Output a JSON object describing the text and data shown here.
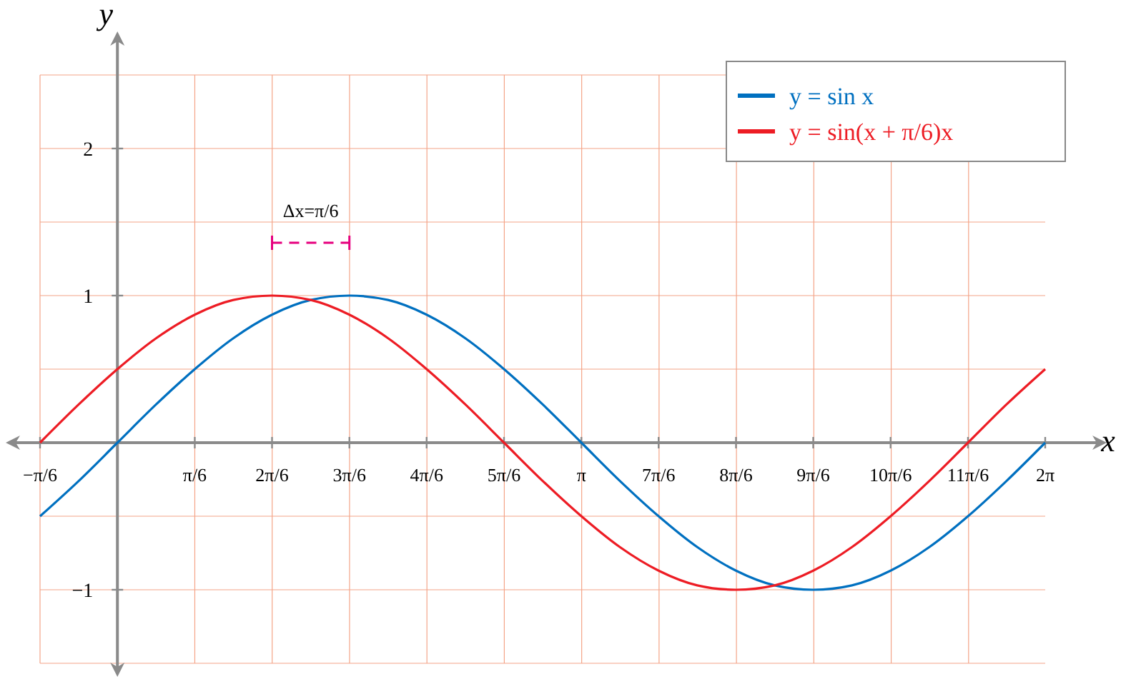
{
  "chart_data": {
    "type": "line",
    "xlabel": "x",
    "ylabel": "y",
    "x": [
      -0.524,
      -0.262,
      0,
      0.262,
      0.524,
      0.785,
      1.047,
      1.309,
      1.571,
      1.833,
      2.094,
      2.356,
      2.618,
      2.88,
      3.142,
      3.403,
      3.665,
      3.927,
      4.189,
      4.451,
      4.712,
      4.974,
      5.236,
      5.498,
      5.76,
      6.021,
      6.283
    ],
    "series": [
      {
        "name": "y = sin x",
        "color": "#0070c0",
        "values": [
          -0.5,
          -0.26,
          0,
          0.26,
          0.5,
          0.71,
          0.87,
          0.97,
          1,
          0.97,
          0.87,
          0.71,
          0.5,
          0.26,
          0,
          -0.26,
          -0.5,
          -0.71,
          -0.87,
          -0.97,
          -1,
          -0.97,
          -0.87,
          -0.71,
          -0.5,
          -0.26,
          0
        ]
      },
      {
        "name": "y = sin(x + π/6)x",
        "color": "#ed1c24",
        "values": [
          0,
          0.26,
          0.5,
          0.71,
          0.87,
          0.97,
          1,
          0.97,
          0.87,
          0.71,
          0.5,
          0.26,
          0,
          -0.26,
          -0.5,
          -0.71,
          -0.87,
          -0.97,
          -1,
          -0.97,
          -0.87,
          -0.71,
          -0.5,
          -0.26,
          0,
          0.26,
          0.5
        ]
      }
    ],
    "xlim": [
      -0.524,
      6.283
    ],
    "ylim": [
      -1.5,
      2.5
    ],
    "xticks": [
      {
        "value": -0.524,
        "label": "−π/6"
      },
      {
        "value": 0.524,
        "label": "π/6"
      },
      {
        "value": 1.047,
        "label": "2π/6"
      },
      {
        "value": 1.571,
        "label": "3π/6"
      },
      {
        "value": 2.094,
        "label": "4π/6"
      },
      {
        "value": 2.618,
        "label": "5π/6"
      },
      {
        "value": 3.142,
        "label": "π"
      },
      {
        "value": 3.665,
        "label": "7π/6"
      },
      {
        "value": 4.189,
        "label": "8π/6"
      },
      {
        "value": 4.712,
        "label": "9π/6"
      },
      {
        "value": 5.236,
        "label": "10π/6"
      },
      {
        "value": 5.76,
        "label": "11π/6"
      },
      {
        "value": 6.283,
        "label": "2π"
      }
    ],
    "yticks": [
      {
        "value": -1,
        "label": "−1"
      },
      1,
      2
    ],
    "grid": true,
    "legend": "top right",
    "marker": "none",
    "line_style": "solid",
    "annotations": [
      "Δx=π/6"
    ]
  }
}
